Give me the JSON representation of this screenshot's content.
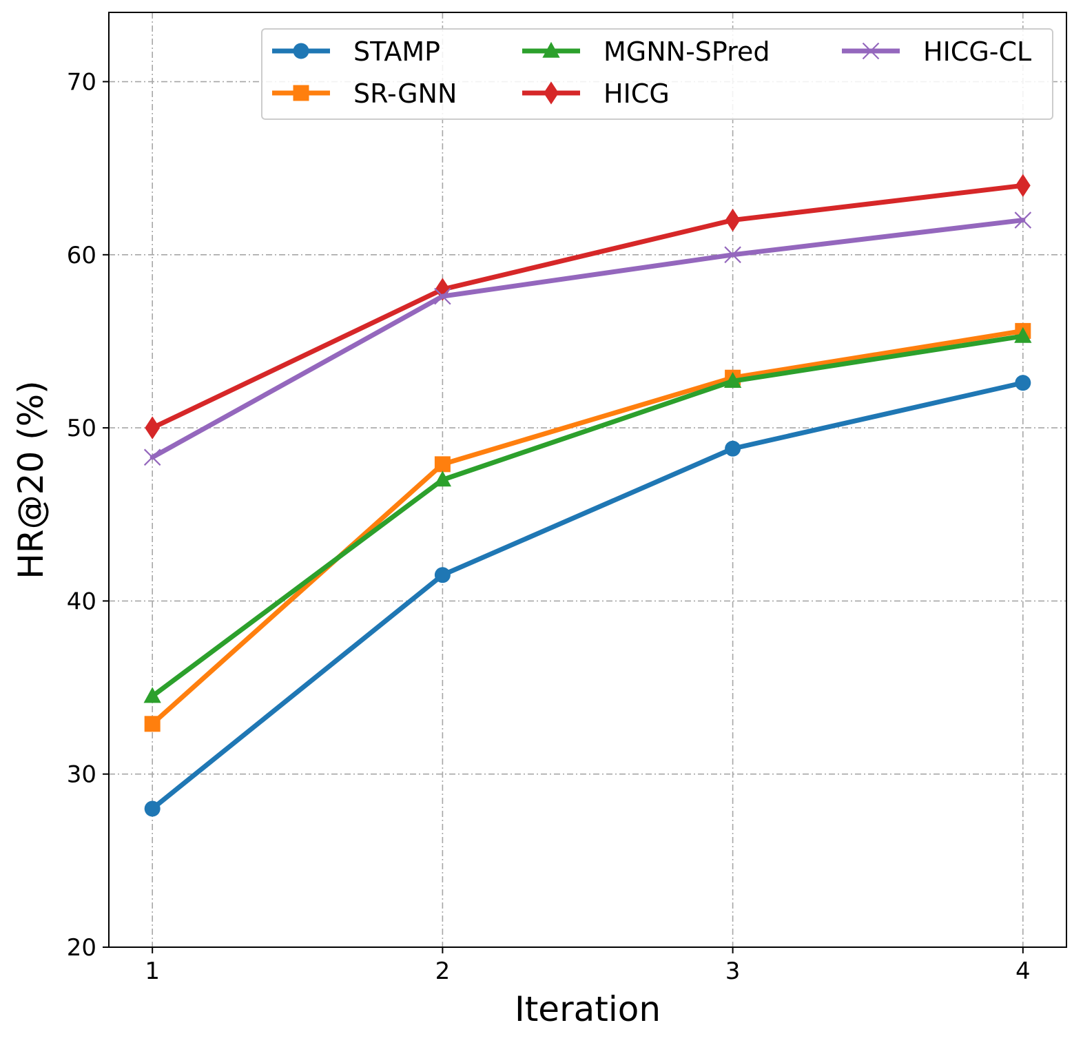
{
  "chart_data": {
    "type": "line",
    "xlabel": "Iteration",
    "ylabel": "HR@20 (%)",
    "x": [
      1,
      2,
      3,
      4
    ],
    "xlim": [
      0.85,
      4.15
    ],
    "ylim": [
      20,
      74
    ],
    "yticks": [
      20,
      30,
      40,
      50,
      60,
      70
    ],
    "xticks": [
      1,
      2,
      3,
      4
    ],
    "grid": true,
    "legend_position": "top-right",
    "series": [
      {
        "name": "STAMP",
        "color": "#1f77b4",
        "marker": "circle",
        "values": [
          28.0,
          41.5,
          48.8,
          52.6
        ]
      },
      {
        "name": "SR-GNN",
        "color": "#ff7f0e",
        "marker": "square",
        "values": [
          32.9,
          47.9,
          52.9,
          55.6
        ]
      },
      {
        "name": "MGNN-SPred",
        "color": "#2ca02c",
        "marker": "triangle",
        "values": [
          34.5,
          47.0,
          52.7,
          55.3
        ]
      },
      {
        "name": "HICG",
        "color": "#d62728",
        "marker": "diamond",
        "values": [
          50.0,
          58.0,
          62.0,
          64.0
        ]
      },
      {
        "name": "HICG-CL",
        "color": "#9467bd",
        "marker": "x",
        "values": [
          48.3,
          57.6,
          60.0,
          62.0
        ]
      }
    ]
  }
}
